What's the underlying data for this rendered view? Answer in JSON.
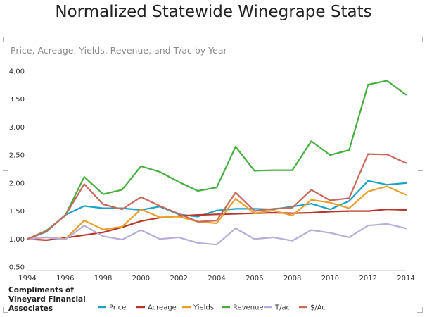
{
  "title": "Normalized Statewide Winegrape Stats",
  "credit": {
    "line1": "Compliments of",
    "line2": "Vineyard Financial",
    "line3": "Associates"
  },
  "chart_data": {
    "type": "line",
    "subtitle": "Price, Acreage, Yields, Revenue, and T/ac by Year",
    "x": [
      1994,
      1995,
      1996,
      1997,
      1998,
      1999,
      2000,
      2001,
      2002,
      2003,
      2004,
      2005,
      2006,
      2007,
      2008,
      2009,
      2010,
      2011,
      2012,
      2013,
      2014
    ],
    "x_ticks": [
      "1994",
      "1996",
      "1998",
      "2000",
      "2002",
      "2004",
      "2006",
      "2008",
      "2010",
      "2012",
      "2014"
    ],
    "y_ticks": [
      "0.50",
      "1.00",
      "1.50",
      "2.00",
      "2.50",
      "3.00",
      "3.50",
      "4.00"
    ],
    "ylim": [
      0.5,
      4.0
    ],
    "grid": false,
    "legend_position": "bottom",
    "series": [
      {
        "name": "Price",
        "color": "#1aa3c7",
        "values": [
          1.0,
          1.13,
          1.43,
          1.59,
          1.55,
          1.55,
          1.52,
          1.58,
          1.44,
          1.4,
          1.51,
          1.54,
          1.54,
          1.53,
          1.58,
          1.63,
          1.53,
          1.68,
          2.04,
          1.97,
          2.0
        ]
      },
      {
        "name": "Acreage",
        "color": "#b9362a",
        "values": [
          1.0,
          0.98,
          1.02,
          1.07,
          1.12,
          1.21,
          1.32,
          1.38,
          1.41,
          1.43,
          1.44,
          1.45,
          1.46,
          1.47,
          1.46,
          1.47,
          1.49,
          1.5,
          1.5,
          1.53,
          1.52
        ]
      },
      {
        "name": "Yields",
        "color": "#e8a02c",
        "values": [
          1.0,
          1.03,
          1.0,
          1.33,
          1.17,
          1.22,
          1.53,
          1.39,
          1.4,
          1.31,
          1.28,
          1.72,
          1.46,
          1.51,
          1.42,
          1.7,
          1.65,
          1.55,
          1.85,
          1.94,
          1.79
        ]
      },
      {
        "name": "Revenue",
        "color": "#45b03f",
        "values": [
          1.0,
          1.15,
          1.42,
          2.11,
          1.8,
          1.88,
          2.3,
          2.2,
          2.02,
          1.86,
          1.92,
          2.65,
          2.22,
          2.23,
          2.23,
          2.75,
          2.5,
          2.59,
          3.76,
          3.83,
          3.58
        ]
      },
      {
        "name": "T/ac",
        "color": "#b8acd8",
        "values": [
          1.0,
          1.03,
          0.99,
          1.24,
          1.05,
          0.99,
          1.16,
          1.0,
          1.03,
          0.93,
          0.9,
          1.19,
          1.0,
          1.03,
          0.97,
          1.16,
          1.11,
          1.03,
          1.24,
          1.27,
          1.19
        ]
      },
      {
        "name": "$/Ac",
        "color": "#c8695b",
        "values": [
          1.0,
          1.14,
          1.42,
          1.98,
          1.62,
          1.53,
          1.75,
          1.59,
          1.45,
          1.31,
          1.33,
          1.83,
          1.5,
          1.54,
          1.56,
          1.88,
          1.69,
          1.73,
          2.52,
          2.51,
          2.36
        ]
      }
    ]
  }
}
